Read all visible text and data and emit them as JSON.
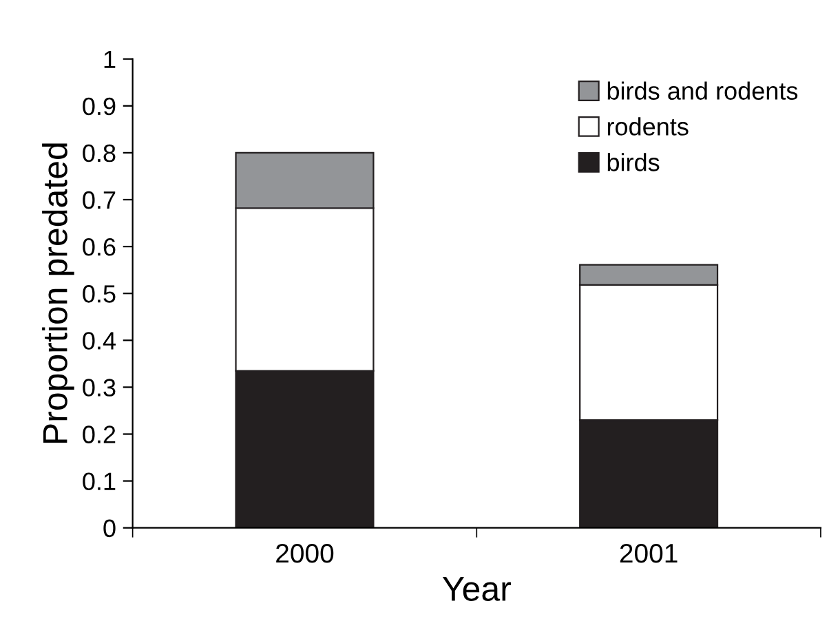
{
  "chart_data": {
    "type": "bar",
    "stacked": true,
    "xlabel": "Year",
    "ylabel": "Proportion predated",
    "categories": [
      "2000",
      "2001"
    ],
    "series": [
      {
        "name": "birds",
        "color": "#231f20",
        "values": [
          0.335,
          0.23
        ]
      },
      {
        "name": "rodents",
        "color": "#ffffff",
        "values": [
          0.347,
          0.288
        ]
      },
      {
        "name": "birds and rodents",
        "color": "#939598",
        "values": [
          0.118,
          0.043
        ]
      }
    ],
    "ylim": [
      0,
      1
    ],
    "yticks": [
      0,
      0.1,
      0.2,
      0.3,
      0.4,
      0.5,
      0.6,
      0.7,
      0.8,
      0.9,
      1
    ],
    "grid": false,
    "legend": "top right"
  }
}
